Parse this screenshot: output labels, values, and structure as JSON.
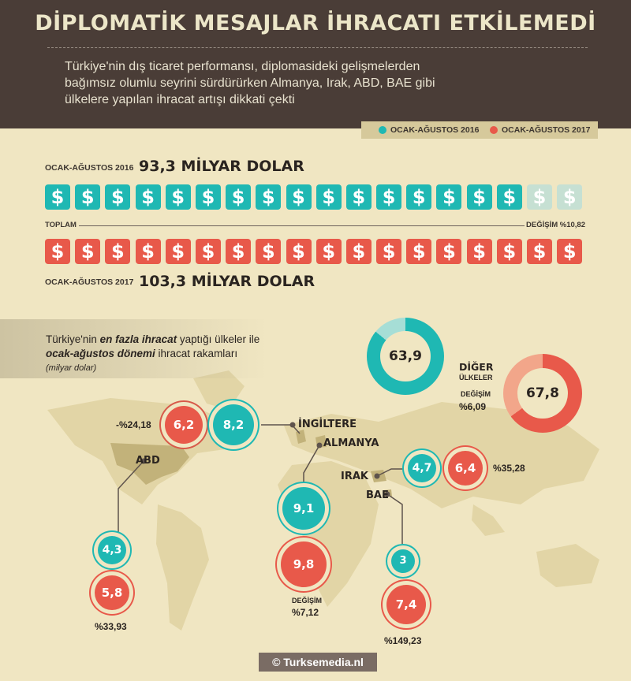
{
  "header": {
    "title": "DİPLOMATİK MESAJLAR İHRACATI ETKİLEMEDİ",
    "subtitle_lines": [
      "Türkiye'nin dış ticaret performansı, diplomasideki gelişmelerden",
      "bağımsız olumlu seyrini sürdürürken Almanya, Irak, ABD, BAE gibi",
      "ülkelere yapılan ihracat artışı dikkati çekti"
    ]
  },
  "legend": {
    "p2016": "OCAK-AĞUSTOS 2016",
    "p2017": "OCAK-AĞUSTOS 2017"
  },
  "colors": {
    "teal": "#1fb8b3",
    "red": "#e8594a",
    "dark": "#4a3d37",
    "bg": "#f0e6c2",
    "map": "#d6c99b"
  },
  "totals": {
    "p2016_label": "OCAK-AĞUSTOS 2016",
    "p2016_value": "93,3 MİLYAR DOLAR",
    "p2017_label": "OCAK-AĞUSTOS 2017",
    "p2017_value": "103,3 MİLYAR DOLAR",
    "toplam_label": "TOPLAM",
    "change_label": "DEĞİŞİM %10,82",
    "icon_symbol": "$",
    "icons_2016_filled": 16,
    "icons_total": 18
  },
  "intro": {
    "line1_a": "Türkiye'nin ",
    "line1_b": "en fazla ihracat",
    "line1_c": " yaptığı ülkeler ile",
    "line2_a": "ocak-ağustos dönemi",
    "line2_b": " ihracat rakamları",
    "unit": "(milyar dolar)"
  },
  "others": {
    "label_1": "DİĞER",
    "label_2": "ÜLKELER",
    "change_label": "DEĞİŞİM",
    "change": "%6,09",
    "v2016": "63,9",
    "v2017": "67,8"
  },
  "countries": [
    {
      "name": "İNGİLTERE",
      "v2016": "8,2",
      "v2017": "6,2",
      "change": "-%24,18"
    },
    {
      "name": "ABD",
      "v2016": "4,3",
      "v2017": "5,8",
      "change": "%33,93"
    },
    {
      "name": "ALMANYA",
      "v2016": "9,1",
      "v2017": "9,8",
      "change_label": "DEĞİŞİM",
      "change": "%7,12"
    },
    {
      "name": "IRAK",
      "v2016": "4,7",
      "v2017": "6,4",
      "change": "%35,28"
    },
    {
      "name": "BAE",
      "v2016": "3",
      "v2017": "7,4",
      "change": "%149,23"
    }
  ],
  "chart_data": {
    "type": "bar",
    "title": "DİPLOMATİK MESAJLAR İHRACATI ETKİLEMEDİ",
    "ylabel": "milyar dolar",
    "categories": [
      "İNGİLTERE",
      "ABD",
      "ALMANYA",
      "IRAK",
      "BAE",
      "DİĞER ÜLKELER"
    ],
    "series": [
      {
        "name": "OCAK-AĞUSTOS 2016",
        "values": [
          8.2,
          4.3,
          9.1,
          4.7,
          3.0,
          63.9
        ]
      },
      {
        "name": "OCAK-AĞUSTOS 2017",
        "values": [
          6.2,
          5.8,
          9.8,
          6.4,
          7.4,
          67.8
        ]
      }
    ],
    "totals": {
      "OCAK-AĞUSTOS 2016": 93.3,
      "OCAK-AĞUSTOS 2017": 103.3
    },
    "changes_percent": {
      "İNGİLTERE": -24.18,
      "ABD": 33.93,
      "ALMANYA": 7.12,
      "IRAK": 35.28,
      "BAE": 149.23,
      "DİĞER ÜLKELER": 6.09,
      "TOPLAM": 10.82
    }
  },
  "footer": {
    "credit": "© Turksemedia.nl"
  }
}
